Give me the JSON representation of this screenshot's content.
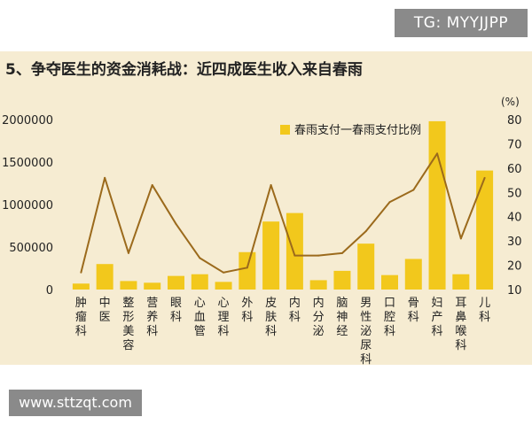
{
  "watermarks": {
    "top": "TG: MYYJJPP",
    "bottom": "www.sttzqt.com"
  },
  "chart_data": {
    "type": "bar",
    "title": "5、争夺医生的资金消耗战：近四成医生收入来自春雨",
    "categories": [
      "肿瘤科",
      "中医",
      "整形美容",
      "营养科",
      "眼科",
      "心血管",
      "心理科",
      "外科",
      "皮肤科",
      "内科",
      "内分泌",
      "脑神经",
      "男性泌尿科",
      "口腔科",
      "骨科",
      "妇产科",
      "耳鼻喉科",
      "儿科"
    ],
    "series": [
      {
        "name": "春雨支付",
        "axis": "left",
        "kind": "bar",
        "values": [
          70000,
          300000,
          100000,
          80000,
          160000,
          180000,
          90000,
          440000,
          800000,
          900000,
          110000,
          220000,
          540000,
          170000,
          360000,
          1980000,
          180000,
          1400000
        ]
      },
      {
        "name": "春雨支付比例",
        "axis": "right",
        "kind": "line",
        "values": [
          17,
          56,
          25,
          53,
          37,
          23,
          17,
          19,
          53,
          24,
          24,
          25,
          34,
          46,
          51,
          66,
          31,
          56
        ]
      }
    ],
    "legend_text": "春雨支付一春雨支付比例",
    "legend_position": "top-right",
    "yleft": {
      "ticks": [
        "0",
        "500000",
        "1000000",
        "1500000",
        "2000000"
      ],
      "lim": [
        0,
        2000000
      ]
    },
    "yright": {
      "unit": "(%)",
      "ticks": [
        "10",
        "20",
        "30",
        "40",
        "50",
        "60",
        "70",
        "80"
      ],
      "lim": [
        10,
        80
      ]
    },
    "grid": false,
    "colors": {
      "bar": "#f2c81c",
      "line": "#9b6a1c",
      "panel": "#f6ecd2"
    }
  }
}
